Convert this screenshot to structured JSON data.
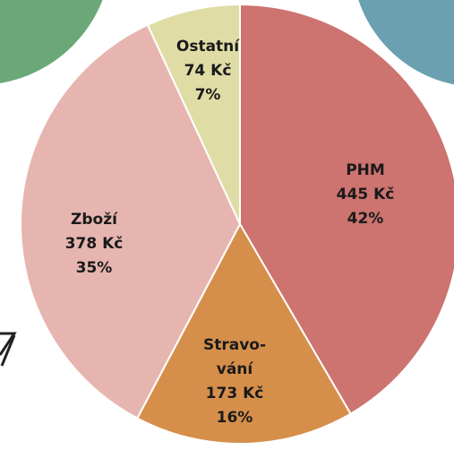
{
  "chart_data": {
    "type": "pie",
    "categories": [
      "PHM",
      "Stravo-\nvání",
      "Zboží",
      "Ostatní"
    ],
    "values": [
      445,
      173,
      378,
      74
    ],
    "value_labels": [
      "445 Kč",
      "173 Kč",
      "378 Kč",
      "74 Kč"
    ],
    "percent_labels": [
      "42%",
      "16%",
      "35%",
      "7%"
    ],
    "colors": [
      "#cd7370",
      "#d68f4b",
      "#e6b5b0",
      "#e0dca6"
    ]
  }
}
